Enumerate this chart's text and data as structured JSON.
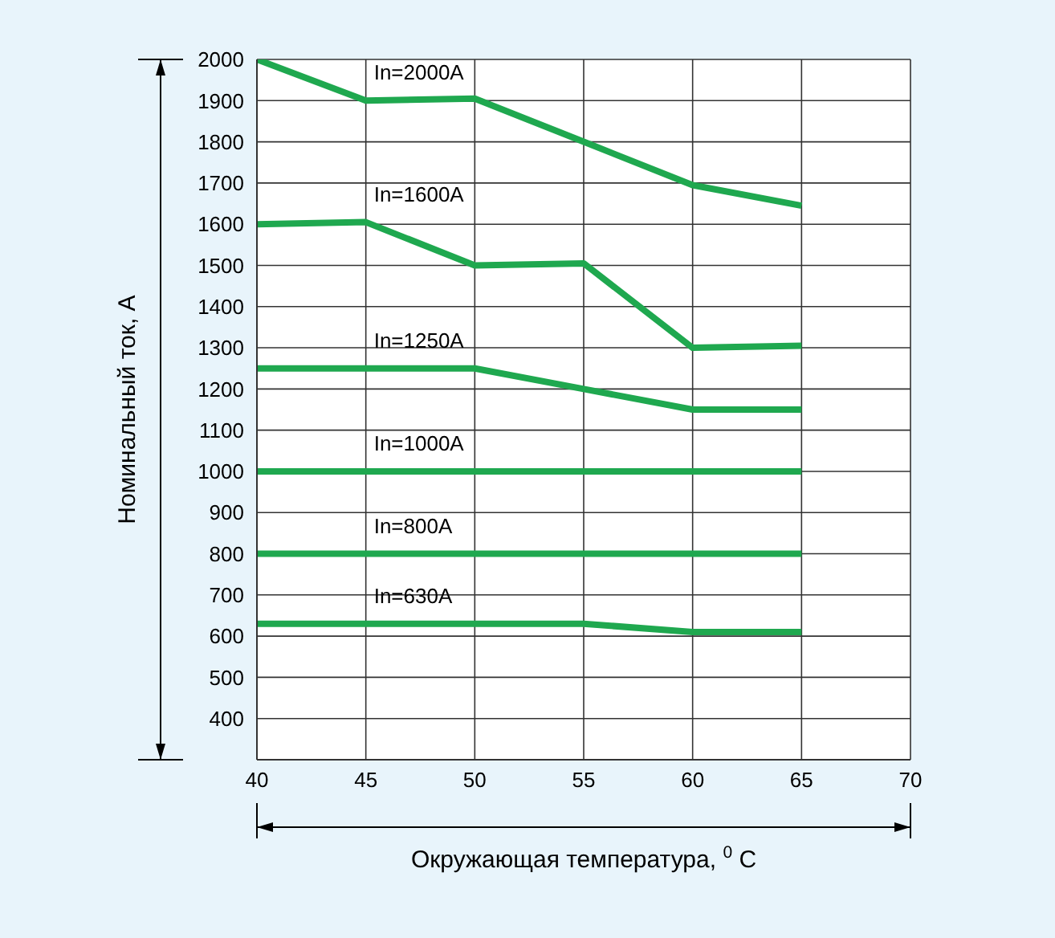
{
  "chart_data": {
    "type": "line",
    "xlabel": "Окружающая температура, $^{0}$C",
    "ylabel": "Номинальный ток, А",
    "x": [
      40,
      45,
      50,
      55,
      60,
      65
    ],
    "series": [
      {
        "name": "In=2000A",
        "color": "#1fa84f",
        "values": [
          2000,
          1900,
          1905,
          1800,
          1695,
          1645
        ]
      },
      {
        "name": "In=1600A",
        "color": "#1fa84f",
        "values": [
          1600,
          1605,
          1500,
          1505,
          1300,
          1305
        ]
      },
      {
        "name": "In=1250A",
        "color": "#1fa84f",
        "values": [
          1250,
          1250,
          1250,
          1200,
          1150,
          1150
        ]
      },
      {
        "name": "In=1000A",
        "color": "#1fa84f",
        "values": [
          1000,
          1000,
          1000,
          1000,
          1000,
          1000
        ]
      },
      {
        "name": "In=800A",
        "color": "#1fa84f",
        "values": [
          800,
          800,
          800,
          800,
          800,
          800
        ]
      },
      {
        "name": "In=630A",
        "color": "#1fa84f",
        "values": [
          630,
          630,
          630,
          630,
          610,
          610
        ]
      }
    ],
    "xlim": [
      40,
      70
    ],
    "xticks": [
      40,
      45,
      50,
      55,
      60,
      65,
      70
    ],
    "ylim": [
      300,
      2000
    ],
    "yticks": [
      400,
      500,
      600,
      700,
      800,
      900,
      1000,
      1100,
      1200,
      1300,
      1400,
      1500,
      1600,
      1700,
      1800,
      1900,
      2000
    ],
    "grid": true,
    "marker": "none",
    "line_style": "solid"
  }
}
